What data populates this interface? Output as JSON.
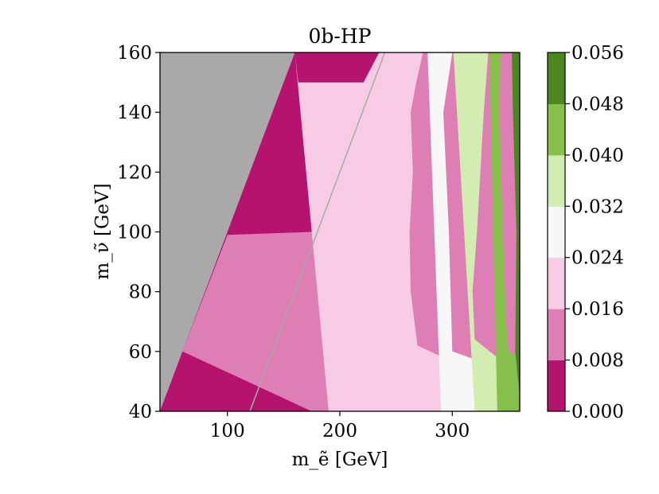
{
  "chart_data": {
    "type": "heatmap",
    "title": "0b-HP",
    "xlabel": "m_ẽ [GeV]",
    "ylabel": "m_ν̃ [GeV]",
    "xlim": [
      40,
      360
    ],
    "ylim": [
      40,
      160
    ],
    "x_ticks": [
      100,
      200,
      300
    ],
    "y_ticks": [
      40,
      60,
      80,
      100,
      120,
      140,
      160
    ],
    "colorbar": {
      "levels": [
        0.0,
        0.008,
        0.016,
        0.024,
        0.032,
        0.04,
        0.048,
        0.056
      ],
      "tick_labels": [
        "0.000",
        "0.008",
        "0.016",
        "0.024",
        "0.032",
        "0.040",
        "0.048",
        "0.056"
      ],
      "colors": [
        "#b5136e",
        "#dd7eb4",
        "#f6cbe3",
        "#f7f7f7",
        "#d2ecb1",
        "#86bf4a",
        "#4b861f"
      ]
    },
    "excluded_region": {
      "color": "#a9a9a9",
      "polygon": [
        [
          40,
          40
        ],
        [
          40,
          160
        ],
        [
          160,
          160
        ]
      ]
    },
    "diagonal_line": {
      "color": "#a9a9a9",
      "points": [
        [
          120,
          40
        ],
        [
          240,
          160
        ]
      ]
    },
    "contour_bands": [
      {
        "level_index": 1,
        "polygon": [
          [
            40,
            40
          ],
          [
            100,
            99
          ],
          [
            175,
            100
          ],
          [
            230,
            140
          ],
          [
            240,
            160
          ],
          [
            360,
            160
          ],
          [
            360,
            40
          ]
        ]
      },
      {
        "level_index": 2,
        "polygon": [
          [
            60,
            60
          ],
          [
            100,
            99
          ],
          [
            175,
            100
          ],
          [
            240,
            160
          ],
          [
            260,
            160
          ],
          [
            263,
            150
          ],
          [
            268,
            160
          ],
          [
            360,
            160
          ],
          [
            360,
            40
          ],
          [
            175,
            40
          ]
        ]
      },
      {
        "level_index": 3,
        "polygon": [
          [
            160,
            160
          ],
          [
            163,
            150
          ],
          [
            221,
            150
          ],
          [
            235,
            160
          ],
          [
            274,
            160
          ],
          [
            268,
            150
          ],
          [
            263,
            140
          ],
          [
            265,
            120
          ],
          [
            262,
            100
          ],
          [
            263,
            80
          ],
          [
            269,
            62
          ],
          [
            360,
            46
          ],
          [
            360,
            40
          ],
          [
            190,
            40
          ]
        ]
      },
      {
        "level_index": 4,
        "polygon": [
          [
            278,
            160
          ],
          [
            300,
            160
          ],
          [
            292,
            140
          ],
          [
            297,
            100
          ],
          [
            300,
            60
          ],
          [
            360,
            52
          ],
          [
            360,
            40
          ],
          [
            290,
            40
          ]
        ]
      },
      {
        "level_index": 5,
        "polygon": [
          [
            301,
            160
          ],
          [
            332,
            160
          ],
          [
            328,
            140
          ],
          [
            322,
            100
          ],
          [
            318,
            80
          ],
          [
            320,
            64
          ],
          [
            340,
            58
          ],
          [
            360,
            56
          ],
          [
            360,
            40
          ],
          [
            320,
            40
          ]
        ]
      },
      {
        "level_index": 6,
        "polygon": [
          [
            333,
            160
          ],
          [
            343,
            160
          ],
          [
            342,
            140
          ],
          [
            345,
            100
          ],
          [
            348,
            70
          ],
          [
            350,
            60
          ],
          [
            360,
            58
          ],
          [
            360,
            40
          ],
          [
            340,
            40
          ]
        ]
      },
      {
        "level_index": 7,
        "polygon": [
          [
            353,
            160
          ],
          [
            360,
            160
          ],
          [
            360,
            45
          ],
          [
            356,
            60
          ],
          [
            357,
            100
          ],
          [
            354,
            140
          ]
        ]
      }
    ],
    "grid": false,
    "legend": "colorbar-right"
  }
}
